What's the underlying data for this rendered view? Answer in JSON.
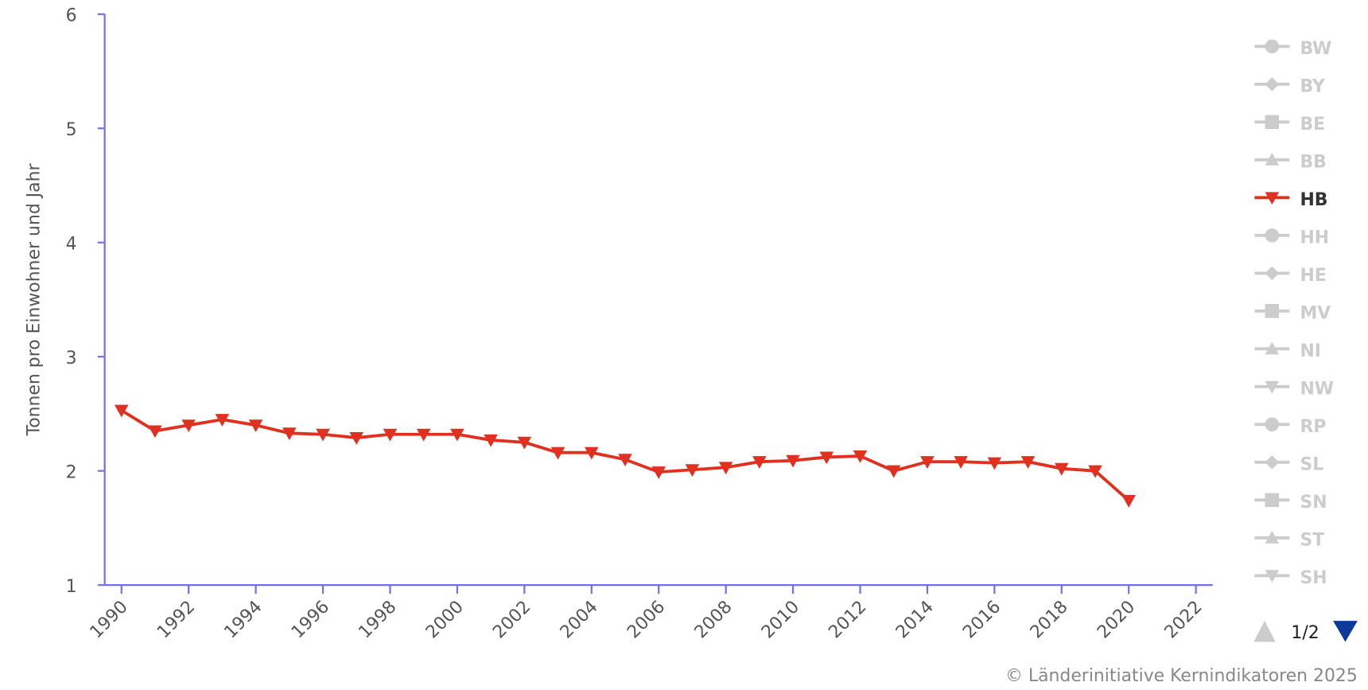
{
  "chart_data": {
    "type": "line",
    "y_label": "Tonnen pro Einwohner und Jahr",
    "x": [
      1990,
      1991,
      1992,
      1993,
      1994,
      1995,
      1996,
      1997,
      1998,
      1999,
      2000,
      2001,
      2002,
      2003,
      2004,
      2005,
      2006,
      2007,
      2008,
      2009,
      2010,
      2011,
      2012,
      2013,
      2014,
      2015,
      2016,
      2017,
      2018,
      2019,
      2020
    ],
    "series": [
      {
        "name": "HB",
        "color": "#e03020",
        "marker": "triangle-down",
        "values": [
          2.53,
          2.35,
          2.4,
          2.45,
          2.4,
          2.33,
          2.32,
          2.29,
          2.32,
          2.32,
          2.32,
          2.27,
          2.25,
          2.16,
          2.16,
          2.1,
          1.99,
          2.01,
          2.03,
          2.08,
          2.09,
          2.12,
          2.13,
          2.0,
          2.08,
          2.08,
          2.07,
          2.08,
          2.02,
          2.0,
          1.74
        ]
      }
    ],
    "legend_inactive": [
      {
        "name": "BW",
        "marker": "circle"
      },
      {
        "name": "BY",
        "marker": "diamond"
      },
      {
        "name": "BE",
        "marker": "square"
      },
      {
        "name": "BB",
        "marker": "triangle-up"
      },
      {
        "name": "HH",
        "marker": "circle"
      },
      {
        "name": "HE",
        "marker": "diamond"
      },
      {
        "name": "MV",
        "marker": "square"
      },
      {
        "name": "NI",
        "marker": "triangle-up"
      },
      {
        "name": "NW",
        "marker": "triangle-down"
      },
      {
        "name": "RP",
        "marker": "circle"
      },
      {
        "name": "SL",
        "marker": "diamond"
      },
      {
        "name": "SN",
        "marker": "square"
      },
      {
        "name": "ST",
        "marker": "triangle-up"
      },
      {
        "name": "SH",
        "marker": "triangle-down"
      }
    ],
    "legend_page": "1/2",
    "xlim": [
      1989.5,
      2022.5
    ],
    "xticks": [
      1990,
      1992,
      1994,
      1996,
      1998,
      2000,
      2002,
      2004,
      2006,
      2008,
      2010,
      2012,
      2014,
      2016,
      2018,
      2020,
      2022
    ],
    "ylim": [
      1,
      6
    ],
    "yticks": [
      1,
      2,
      3,
      4,
      5,
      6
    ],
    "axis_color": "#7070ee",
    "inactive_color": "#cccccc",
    "credit": "© Länderinitiative Kernindikatoren 2025"
  }
}
